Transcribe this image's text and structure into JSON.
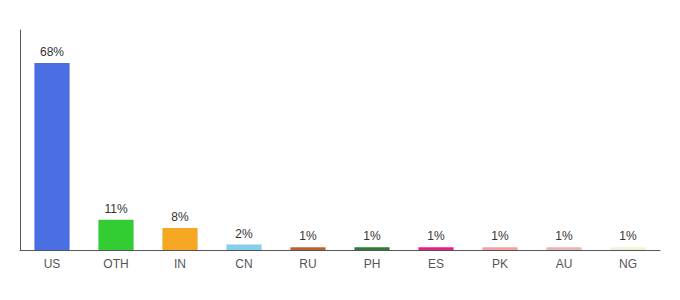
{
  "chart_data": {
    "type": "bar",
    "categories": [
      "US",
      "OTH",
      "IN",
      "CN",
      "RU",
      "PH",
      "ES",
      "PK",
      "AU",
      "NG"
    ],
    "values": [
      68,
      11,
      8,
      2,
      1,
      1,
      1,
      1,
      1,
      1
    ],
    "value_labels": [
      "68%",
      "11%",
      "8%",
      "2%",
      "1%",
      "1%",
      "1%",
      "1%",
      "1%",
      "1%"
    ],
    "colors": [
      "#4a6fe3",
      "#33cc33",
      "#f5a623",
      "#87ceeb",
      "#c0612b",
      "#2e7d32",
      "#e91e8c",
      "#f4a0a0",
      "#e8b8b0",
      "#f5f0d8"
    ],
    "ylim": [
      0,
      80
    ],
    "grid": false,
    "data_labels": true,
    "tick_labels": "x"
  }
}
